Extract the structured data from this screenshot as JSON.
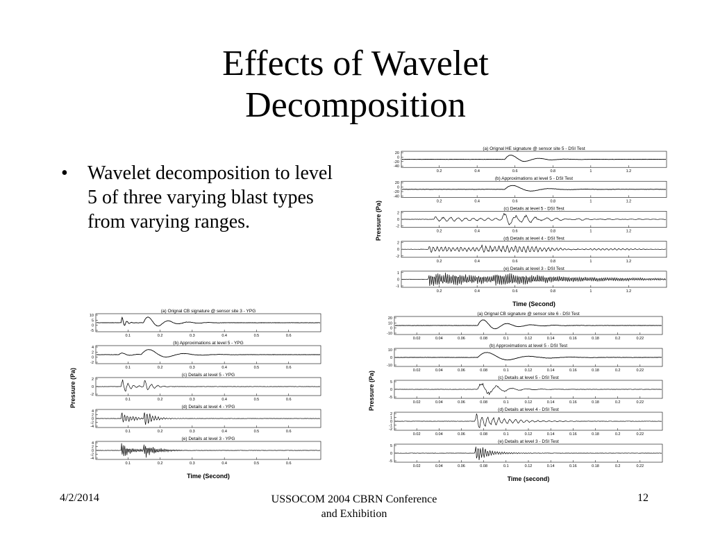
{
  "slide": {
    "title_line1": "Effects of Wavelet",
    "title_line2": "Decomposition",
    "bullets": [
      "Wavelet decomposition to level 5 of three varying blast types from varying ranges."
    ],
    "bullet_glyph": "•"
  },
  "footer": {
    "date": "4/2/2014",
    "center_line1": "USSOCOM 2004 CBRN Conference",
    "center_line2": "and Exhibition",
    "page": "12"
  },
  "figures": {
    "he": {
      "ylabel": "Pressure (Pa)",
      "xlabel": "Time (Second)",
      "x_ticks": [
        "0.2",
        "0.4",
        "0.6",
        "0.8",
        "1",
        "1.2"
      ],
      "panels": [
        {
          "title": "(a)  Orignal HE signature @ sensor site 5 - DSI Test",
          "y_ticks": [
            "20",
            "0",
            "-20",
            "-40"
          ]
        },
        {
          "title": "(b)  Approximations at level 5 - DSI Test",
          "y_ticks": [
            "20",
            "0",
            "-20",
            "-40"
          ]
        },
        {
          "title": "(c) Details at level 5 - DSI Test",
          "y_ticks": [
            "2",
            "0",
            "-2"
          ]
        },
        {
          "title": "(d)  Details at level 4 - DSI Test",
          "y_ticks": [
            "2",
            "0",
            "-2"
          ]
        },
        {
          "title": "(e)  Details at level 3 - DSI Test",
          "y_ticks": [
            "1",
            "0",
            "-1"
          ]
        }
      ]
    },
    "cb_ypg": {
      "ylabel": "Pressure (Pa)",
      "xlabel": "Time (Second)",
      "x_ticks": [
        "0.1",
        "0.2",
        "0.3",
        "0.4",
        "0.5",
        "0.6"
      ],
      "panels": [
        {
          "title": "(a)  Orignal CB signature @ sensor site 3 - YPG",
          "y_ticks": [
            "10",
            "5",
            "0",
            "-5"
          ]
        },
        {
          "title": "(b)  Approximations at level 5 - YPG",
          "y_ticks": [
            "4",
            "2",
            "0",
            "-2"
          ]
        },
        {
          "title": "(c)  Details at level 5 - YPG",
          "y_ticks": [
            "2",
            "0",
            "-2"
          ]
        },
        {
          "title": "(d)  Details at level 4 - YPG",
          "y_ticks": [
            "4",
            "2",
            "0",
            "-2",
            "-4"
          ]
        },
        {
          "title": "(e)  Details at level 3 - YPG",
          "y_ticks": [
            "4",
            "2",
            "0",
            "-2",
            "-4"
          ]
        }
      ]
    },
    "cb_dsi": {
      "ylabel": "Pressure (Pa)",
      "xlabel": "Time (second)",
      "x_ticks": [
        "0.02",
        "0.04",
        "0.06",
        "0.08",
        "0.1",
        "0.12",
        "0.14",
        "0.16",
        "0.18",
        "0.2",
        "0.22"
      ],
      "panels": [
        {
          "title": "(a)  Orignal CB signature @ sensor site 6 - DSI Test",
          "y_ticks": [
            "20",
            "10",
            "0",
            "-10"
          ]
        },
        {
          "title": "(b)  Approximations at level 5 - DSI Test",
          "y_ticks": [
            "10",
            "0",
            "-10"
          ]
        },
        {
          "title": "(c)  Details at level 5 - DSI Test",
          "y_ticks": [
            "5",
            "0",
            "-5"
          ]
        },
        {
          "title": "(d)  Details at level 4 - DSI Test",
          "y_ticks": [
            "2",
            "1",
            "0",
            "-1",
            "-2"
          ]
        },
        {
          "title": "(e)  Details at level 3 - DSI Test",
          "y_ticks": [
            "5",
            "0",
            "-5"
          ]
        }
      ]
    }
  }
}
